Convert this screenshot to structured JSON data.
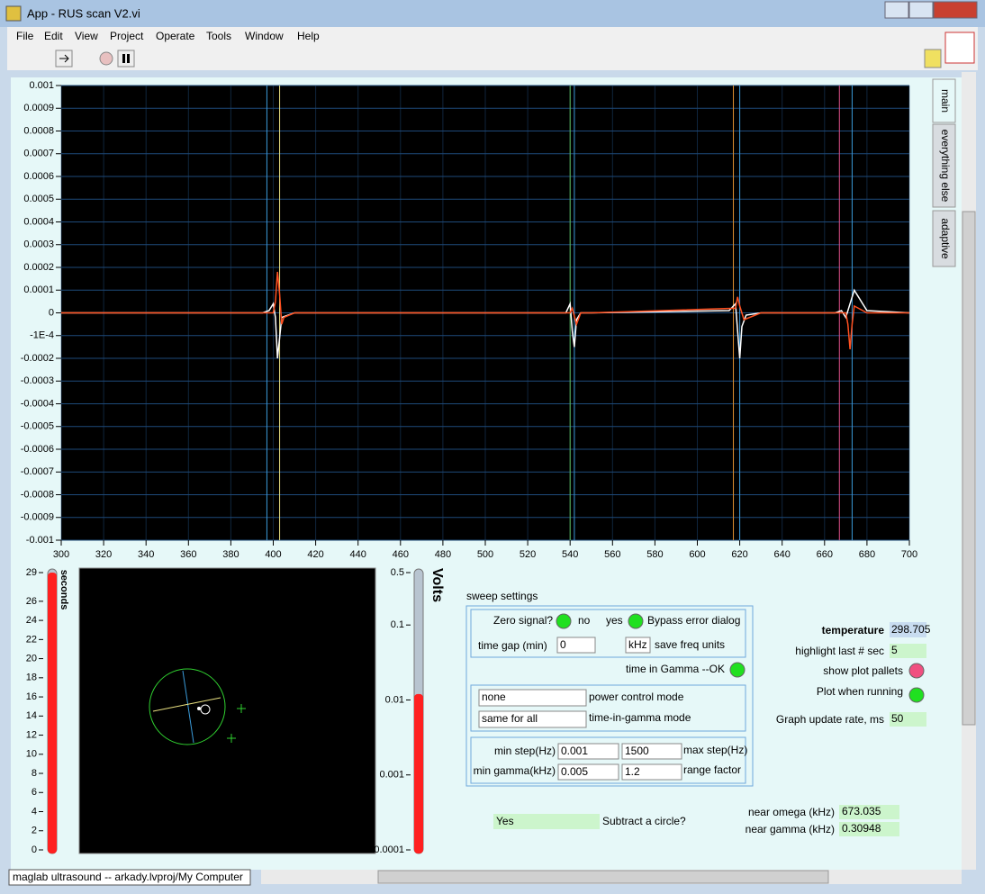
{
  "window": {
    "title": "App - RUS scan V2.vi",
    "menu": [
      "File",
      "Edit",
      "View",
      "Project",
      "Operate",
      "Tools",
      "Window",
      "Help"
    ],
    "status": "maglab ultrasound -- arkady.lvproj/My Computer"
  },
  "tabs": [
    "main",
    "everything else",
    "adaptive"
  ],
  "chart_data": [
    {
      "type": "line",
      "xlim": [
        300,
        700
      ],
      "xticks": [
        300,
        320,
        340,
        360,
        380,
        400,
        420,
        440,
        460,
        480,
        500,
        520,
        540,
        560,
        580,
        600,
        620,
        640,
        660,
        680,
        700
      ],
      "ylim": [
        -0.001,
        0.001
      ],
      "yticks": [
        0.001,
        0.0009,
        0.0008,
        0.0007,
        0.0006,
        0.0005,
        0.0004,
        0.0003,
        0.0002,
        0.0001,
        0,
        {
          "value": -0.0001,
          "label": "-1E-4"
        },
        -0.0002,
        -0.0003,
        -0.0004,
        -0.0005,
        -0.0006,
        -0.0007,
        -0.0008,
        -0.0009,
        -0.001
      ],
      "grid": true,
      "markers": [
        {
          "x": 397,
          "color": "#3a9ad8"
        },
        {
          "x": 403,
          "color": "#e8e080"
        },
        {
          "x": 540,
          "color": "#60c060"
        },
        {
          "x": 542,
          "color": "#3a9ad8"
        },
        {
          "x": 617,
          "color": "#e09030"
        },
        {
          "x": 620,
          "color": "#3a9ad8"
        },
        {
          "x": 667,
          "color": "#e0508a"
        },
        {
          "x": 673,
          "color": "#3a9ad8"
        }
      ],
      "series": [
        {
          "color": "#ffffff",
          "x": [
            300,
            395,
            398,
            400,
            401,
            402,
            404,
            410,
            538,
            540,
            541,
            542,
            543,
            545,
            550,
            615,
            618,
            620,
            621,
            623,
            630,
            665,
            668,
            670,
            672,
            674,
            680,
            700
          ],
          "values": [
            0,
            0,
            1e-05,
            4e-05,
            -2e-05,
            -0.0002,
            -2e-05,
            0,
            0,
            4e-05,
            -8e-05,
            -0.00015,
            -3e-05,
            0,
            0,
            1e-05,
            4e-05,
            -0.0002,
            -6e-05,
            -1e-05,
            0,
            0,
            1e-05,
            -2e-05,
            4e-05,
            0.0001,
            1e-05,
            0
          ]
        },
        {
          "color": "#ff5020",
          "x": [
            300,
            400,
            401,
            402,
            403,
            404,
            405,
            410,
            540,
            541,
            543,
            545,
            550,
            618,
            619,
            620,
            622,
            630,
            670,
            671,
            672,
            673,
            674,
            680,
            700
          ],
          "values": [
            0,
            0,
            5e-05,
            0.00018,
            8e-05,
            -5e-05,
            -2e-05,
            0,
            0,
            2e-05,
            -5e-05,
            0,
            0,
            2e-05,
            7e-05,
            3e-05,
            -3e-05,
            0,
            0,
            -5e-05,
            -0.00016,
            -5e-05,
            3e-05,
            0,
            0
          ]
        }
      ]
    },
    {
      "type": "gauge",
      "label": "seconds",
      "ylim": [
        0,
        29
      ],
      "yticks": [
        0,
        2,
        4,
        6,
        8,
        10,
        12,
        14,
        16,
        18,
        20,
        22,
        24,
        26,
        29
      ],
      "value": 29,
      "color": "#ff2020"
    },
    {
      "type": "gauge",
      "label": "Volts",
      "log": true,
      "ylim": [
        0.0001,
        0.5
      ],
      "yticks": [
        0.0001,
        0.001,
        0.01,
        0.1,
        0.5
      ],
      "value": 0.012,
      "color": "#ff2020"
    }
  ],
  "panel": {
    "sweep_title": "sweep settings",
    "zero_signal": "Zero signal?",
    "no": "no",
    "yes": "yes",
    "bypass": "Bypass error dialog",
    "time_gap_label": "time gap (min)",
    "time_gap": "0",
    "units": "kHz",
    "units_label": "save freq units",
    "time_gamma": "time in Gamma --OK",
    "power_mode": "none",
    "power_mode_label": "power control mode",
    "tig_mode": "same for all",
    "tig_mode_label": "time-in-gamma mode",
    "min_step_label": "min step(Hz)",
    "min_step": "0.001",
    "max_step": "1500",
    "max_step_label": "max step(Hz)",
    "min_gamma_label": "min gamma(kHz)",
    "min_gamma": "0.005",
    "range_factor": "1.2",
    "range_factor_label": "range factor",
    "subtract": "Yes",
    "subtract_label": "Subtract a circle?",
    "temperature_label": "temperature",
    "temperature": "298.705",
    "highlight_label": "highlight last # sec",
    "highlight": "5",
    "pallets_label": "show plot pallets",
    "plot_running_label": "Plot when running",
    "update_label": "Graph update rate, ms",
    "update": "50",
    "omega_label": "near omega (kHz)",
    "omega": "673.035",
    "gamma_label": "near gamma (kHz)",
    "gamma": "0.30948"
  }
}
